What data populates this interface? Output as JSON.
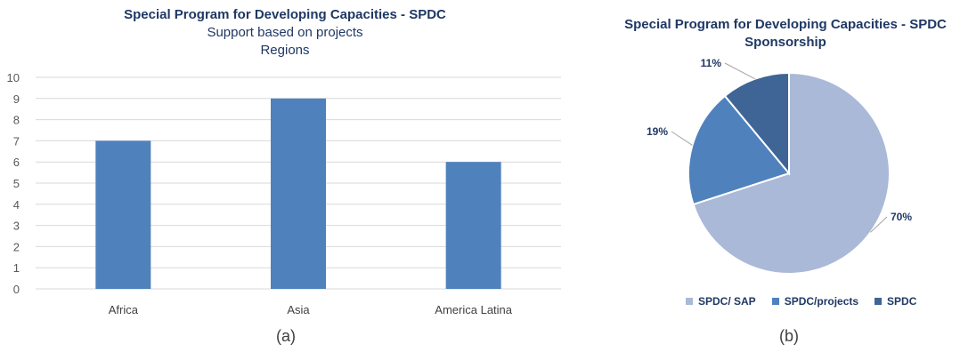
{
  "captions": {
    "a": "(a)",
    "b": "(b)"
  },
  "chart_data": [
    {
      "type": "bar",
      "title": "Special Program for Developing Capacities - SPDC",
      "subtitle": [
        "Support based on projects",
        "Regions"
      ],
      "categories": [
        "Africa",
        "Asia",
        "America Latina"
      ],
      "values": [
        7,
        9,
        6
      ],
      "ylim": [
        0,
        10
      ],
      "yticks": [
        0,
        1,
        2,
        3,
        4,
        5,
        6,
        7,
        8,
        9,
        10
      ],
      "grid": true,
      "color": "#4f81bd"
    },
    {
      "type": "pie",
      "title": "Special Program for Developing Capacities - SPDC",
      "subtitle": "Sponsorship",
      "slices": [
        {
          "label": "SPDC/ SAP",
          "value": 70,
          "display": "70%",
          "color": "#aab9d7"
        },
        {
          "label": "SPDC/projects",
          "value": 19,
          "display": "19%",
          "color": "#4f81bd"
        },
        {
          "label": "SPDC",
          "value": 11,
          "display": "11%",
          "color": "#3e6596"
        }
      ],
      "legend_position": "bottom"
    }
  ]
}
